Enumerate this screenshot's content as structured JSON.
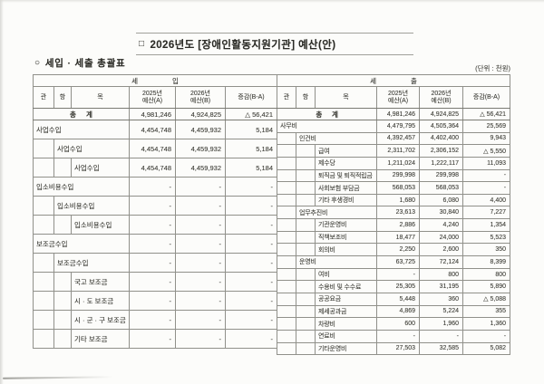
{
  "document": {
    "title_bullet": "□",
    "title": "2026년도 [장애인활동지원기관] 예산(안)",
    "section_bullet": "○",
    "section_title": "세입 · 세출 총괄표",
    "unit_note": "(단위 : 천원)"
  },
  "table": {
    "column_headers": [
      "관",
      "항",
      "목",
      "2025년\n예산(A)",
      "2026년\n예산(B)",
      "증감(B-A)"
    ],
    "sections": [
      {
        "id": "revenue",
        "group_title": "세 입",
        "rows": [
          {
            "level": "total",
            "label": "총 계",
            "y2025": "4,981,246",
            "y2026": "4,924,825",
            "diff": "△ 56,421"
          },
          {
            "level": 1,
            "label": "사업수입",
            "y2025": "4,454,748",
            "y2026": "4,459,932",
            "diff": "5,184"
          },
          {
            "level": 2,
            "label": "사업수입",
            "y2025": "4,454,748",
            "y2026": "4,459,932",
            "diff": "5,184"
          },
          {
            "level": 3,
            "label": "사업수입",
            "y2025": "4,454,748",
            "y2026": "4,459,932",
            "diff": "5,184"
          },
          {
            "level": 1,
            "label": "입소비용수입",
            "y2025": "-",
            "y2026": "-",
            "diff": "-"
          },
          {
            "level": 2,
            "label": "입소비용수입",
            "y2025": "-",
            "y2026": "-",
            "diff": "-"
          },
          {
            "level": 3,
            "label": "입소비용수입",
            "y2025": "-",
            "y2026": "-",
            "diff": "-"
          },
          {
            "level": 1,
            "label": "보조금수입",
            "y2025": "-",
            "y2026": "-",
            "diff": "-"
          },
          {
            "level": 2,
            "label": "보조금수입",
            "y2025": "-",
            "y2026": "-",
            "diff": "-"
          },
          {
            "level": 3,
            "label": "국고 보조금",
            "y2025": "-",
            "y2026": "-",
            "diff": "-"
          },
          {
            "level": 3,
            "label": "시 · 도 보조금",
            "y2025": "-",
            "y2026": "-",
            "diff": "-"
          },
          {
            "level": 3,
            "label": "시 · 군 · 구 보조금",
            "y2025": "-",
            "y2026": "-",
            "diff": "-"
          },
          {
            "level": 3,
            "label": "기타 보조금",
            "y2025": "-",
            "y2026": "-",
            "diff": "-"
          }
        ]
      },
      {
        "id": "expenditure",
        "group_title": "세 출",
        "rows": [
          {
            "level": "total",
            "label": "총 계",
            "y2025": "4,981,246",
            "y2026": "4,924,825",
            "diff": "△ 56,421"
          },
          {
            "level": 1,
            "label": "사무비",
            "y2025": "4,479,795",
            "y2026": "4,505,364",
            "diff": "25,569"
          },
          {
            "level": 2,
            "label": "인건비",
            "y2025": "4,392,457",
            "y2026": "4,402,400",
            "diff": "9,943"
          },
          {
            "level": 3,
            "label": "급여",
            "y2025": "2,311,702",
            "y2026": "2,306,152",
            "diff": "△ 5,550"
          },
          {
            "level": 3,
            "label": "제수당",
            "y2025": "1,211,024",
            "y2026": "1,222,117",
            "diff": "11,093"
          },
          {
            "level": 3,
            "label": "퇴직금 및 퇴직적립금",
            "y2025": "299,998",
            "y2026": "299,998",
            "diff": "-"
          },
          {
            "level": 3,
            "label": "사회보험 부담금",
            "y2025": "568,053",
            "y2026": "568,053",
            "diff": "-"
          },
          {
            "level": 3,
            "label": "기타 후생경비",
            "y2025": "1,680",
            "y2026": "6,080",
            "diff": "4,400"
          },
          {
            "level": 2,
            "label": "업무추진비",
            "y2025": "23,613",
            "y2026": "30,840",
            "diff": "7,227"
          },
          {
            "level": 3,
            "label": "기관운영비",
            "y2025": "2,886",
            "y2026": "4,240",
            "diff": "1,354"
          },
          {
            "level": 3,
            "label": "직책보조비",
            "y2025": "18,477",
            "y2026": "24,000",
            "diff": "5,523"
          },
          {
            "level": 3,
            "label": "회의비",
            "y2025": "2,250",
            "y2026": "2,600",
            "diff": "350"
          },
          {
            "level": 2,
            "label": "운영비",
            "y2025": "63,725",
            "y2026": "72,124",
            "diff": "8,399"
          },
          {
            "level": 3,
            "label": "여비",
            "y2025": "-",
            "y2026": "800",
            "diff": "800"
          },
          {
            "level": 3,
            "label": "수용비 및 수수료",
            "y2025": "25,305",
            "y2026": "31,195",
            "diff": "5,890"
          },
          {
            "level": 3,
            "label": "공공요금",
            "y2025": "5,448",
            "y2026": "360",
            "diff": "△ 5,088"
          },
          {
            "level": 3,
            "label": "제세공과금",
            "y2025": "4,869",
            "y2026": "5,224",
            "diff": "355"
          },
          {
            "level": 3,
            "label": "차량비",
            "y2025": "600",
            "y2026": "1,960",
            "diff": "1,360"
          },
          {
            "level": 3,
            "label": "연료비",
            "y2025": "-",
            "y2026": "-",
            "diff": "-"
          },
          {
            "level": 3,
            "label": "기타운영비",
            "y2025": "27,503",
            "y2026": "32,585",
            "diff": "5,082"
          }
        ]
      }
    ]
  }
}
